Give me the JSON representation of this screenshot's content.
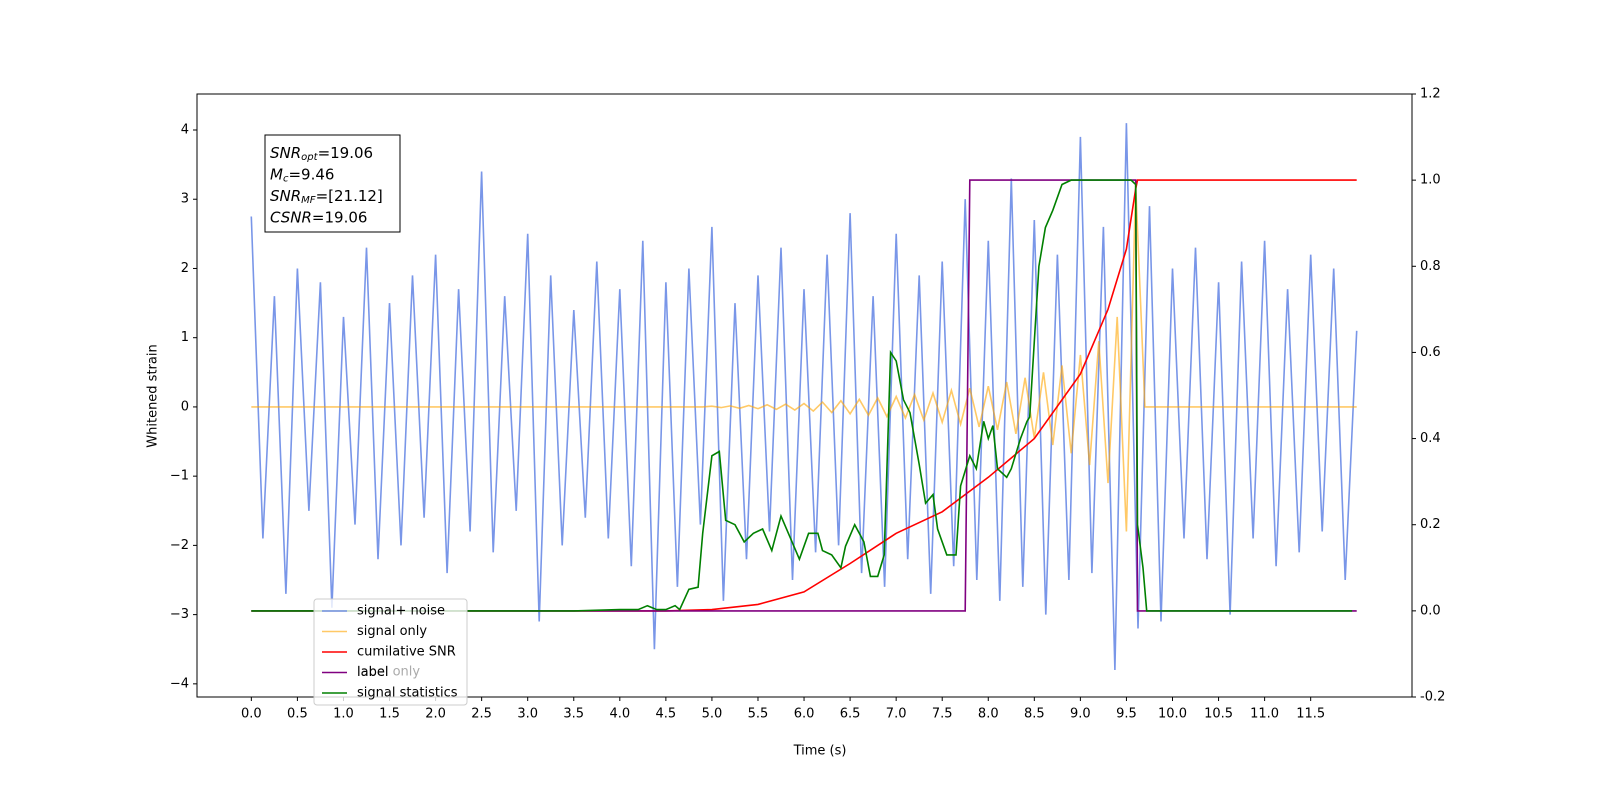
{
  "chart_data": {
    "type": "line",
    "xlabel": "Time (s)",
    "ylabel": "Whitened strain",
    "xlim": [
      -0.59,
      12.6
    ],
    "ylim": [
      -4.19,
      4.52
    ],
    "y2lim": [
      -0.2,
      1.2
    ],
    "xticks": [
      {
        "value": 0,
        "label": "0.0"
      },
      0.5,
      {
        "value": 1,
        "label": "1.0"
      },
      1.5,
      {
        "value": 2,
        "label": "2.0"
      },
      2.5,
      {
        "value": 3,
        "label": "3.0"
      },
      3.5,
      {
        "value": 4,
        "label": "4.0"
      },
      4.5,
      {
        "value": 5,
        "label": "5.0"
      },
      5.5,
      {
        "value": 6,
        "label": "6.0"
      },
      6.5,
      {
        "value": 7,
        "label": "7.0"
      },
      7.5,
      {
        "value": 8,
        "label": "8.0"
      },
      8.5,
      {
        "value": 9,
        "label": "9.0"
      },
      9.5,
      {
        "value": 10,
        "label": "10.0"
      },
      10.5,
      {
        "value": 11,
        "label": "11.0"
      },
      11.5
    ],
    "yticks": [
      {
        "value": -4,
        "label": "−4"
      },
      {
        "value": -3,
        "label": "−3"
      },
      {
        "value": -2,
        "label": "−2"
      },
      {
        "value": -1,
        "label": "−1"
      },
      0,
      1,
      2,
      3,
      4
    ],
    "y2ticks": [
      -0.2,
      {
        "value": 0,
        "label": "0.0"
      },
      0.2,
      0.4,
      0.6,
      0.8,
      {
        "value": 1,
        "label": "1.0"
      },
      1.2
    ],
    "annotation_lines": [
      {
        "name": "SNR",
        "sub": "opt",
        "text": "=19.06"
      },
      {
        "name": "M",
        "sub": "c",
        "text": "=9.46"
      },
      {
        "name": "SNR",
        "sub": "MF",
        "text": "=[21.12]"
      },
      {
        "name": "CSNR",
        "sub": "",
        "text": "=19.06"
      }
    ],
    "legend_loc": "lower left",
    "legend_overlap_text": "label only",
    "series": [
      {
        "name": "signal+ noise",
        "color": "#6f8ee6",
        "opacity": 0.93,
        "axis": "y",
        "x": [
          0,
          0.125,
          0.25,
          0.375,
          0.5,
          0.625,
          0.75,
          0.875,
          1,
          1.125,
          1.25,
          1.375,
          1.5,
          1.625,
          1.75,
          1.875,
          2,
          2.125,
          2.25,
          2.375,
          2.5,
          2.625,
          2.75,
          2.875,
          3,
          3.125,
          3.25,
          3.375,
          3.5,
          3.625,
          3.75,
          3.875,
          4,
          4.125,
          4.25,
          4.375,
          4.5,
          4.625,
          4.75,
          4.875,
          5,
          5.125,
          5.25,
          5.375,
          5.5,
          5.625,
          5.75,
          5.875,
          6,
          6.125,
          6.25,
          6.375,
          6.5,
          6.625,
          6.75,
          6.875,
          7,
          7.125,
          7.25,
          7.375,
          7.5,
          7.625,
          7.75,
          7.875,
          8,
          8.125,
          8.25,
          8.375,
          8.5,
          8.625,
          8.75,
          8.875,
          9,
          9.125,
          9.25,
          9.375,
          9.5,
          9.625,
          9.75,
          9.875,
          10,
          10.125,
          10.25,
          10.375,
          10.5,
          10.625,
          10.75,
          10.875,
          11,
          11.125,
          11.25,
          11.375,
          11.5,
          11.625,
          11.75,
          11.875,
          12
        ],
        "values": [
          2.75,
          -1.9,
          1.6,
          -2.7,
          2.0,
          -1.5,
          1.8,
          -2.9,
          1.3,
          -1.7,
          2.3,
          -2.2,
          1.5,
          -2.0,
          1.9,
          -1.6,
          2.2,
          -2.4,
          1.7,
          -1.8,
          3.4,
          -2.1,
          1.6,
          -1.5,
          2.5,
          -3.1,
          1.9,
          -2.0,
          1.4,
          -1.6,
          2.1,
          -1.9,
          1.7,
          -2.3,
          2.4,
          -3.5,
          1.8,
          -2.6,
          2.0,
          -1.7,
          2.6,
          -2.8,
          1.5,
          -2.2,
          1.9,
          -1.8,
          2.3,
          -2.5,
          1.7,
          -2.1,
          2.2,
          -2.0,
          2.8,
          -2.4,
          1.6,
          -2.6,
          2.5,
          -2.2,
          1.9,
          -2.7,
          2.1,
          -2.3,
          3.0,
          -2.5,
          2.4,
          -2.8,
          3.3,
          -2.6,
          2.7,
          -3.0,
          2.2,
          -2.5,
          3.9,
          -2.4,
          2.6,
          -3.8,
          4.1,
          -3.2,
          2.9,
          -3.1,
          2.0,
          -1.9,
          2.3,
          -2.2,
          1.8,
          -3.0,
          2.1,
          -1.9,
          2.4,
          -2.3,
          1.7,
          -2.1,
          2.2,
          -1.8,
          2.0,
          -2.5,
          1.1
        ]
      },
      {
        "name": "signal only",
        "color": "orange",
        "opacity": 0.6,
        "axis": "y",
        "x": [
          0,
          4.9,
          5.0,
          5.1,
          5.2,
          5.3,
          5.4,
          5.5,
          5.6,
          5.7,
          5.8,
          5.9,
          6.0,
          6.1,
          6.2,
          6.3,
          6.4,
          6.5,
          6.6,
          6.7,
          6.8,
          6.9,
          7.0,
          7.1,
          7.2,
          7.3,
          7.4,
          7.5,
          7.6,
          7.7,
          7.8,
          7.9,
          8.0,
          8.1,
          8.2,
          8.3,
          8.4,
          8.5,
          8.6,
          8.7,
          8.8,
          8.9,
          9.0,
          9.1,
          9.2,
          9.3,
          9.4,
          9.5,
          9.6,
          9.7,
          12
        ],
        "values": [
          0,
          0,
          0.01,
          -0.01,
          0.015,
          -0.02,
          0.02,
          -0.025,
          0.03,
          -0.035,
          0.04,
          -0.045,
          0.05,
          -0.06,
          0.07,
          -0.08,
          0.09,
          -0.1,
          0.11,
          -0.12,
          0.13,
          -0.14,
          0.15,
          -0.16,
          0.18,
          -0.19,
          0.2,
          -0.22,
          0.24,
          -0.25,
          0.27,
          -0.29,
          0.3,
          -0.33,
          0.36,
          -0.39,
          0.42,
          -0.45,
          0.5,
          -0.55,
          0.6,
          -0.67,
          0.75,
          -0.84,
          0.95,
          -1.1,
          1.3,
          -1.8,
          3.2,
          0,
          0
        ]
      },
      {
        "name": "cumilative SNR",
        "color": "red",
        "opacity": 1,
        "axis": "y2",
        "x": [
          0,
          4.5,
          5.0,
          5.5,
          6.0,
          6.5,
          7.0,
          7.5,
          8.0,
          8.5,
          9.0,
          9.3,
          9.5,
          9.6,
          9.62,
          12
        ],
        "values": [
          0,
          0,
          0.003,
          0.015,
          0.044,
          0.11,
          0.18,
          0.23,
          0.31,
          0.4,
          0.55,
          0.7,
          0.84,
          0.98,
          1.0,
          1.0
        ]
      },
      {
        "name": "label",
        "color": "purple",
        "opacity": 1,
        "axis": "y2",
        "x": [
          0,
          7.75,
          7.8,
          9.6,
          9.62,
          12
        ],
        "values": [
          0,
          0,
          1,
          1,
          0,
          0
        ]
      },
      {
        "name": "signal statistics",
        "color": "green",
        "opacity": 1,
        "axis": "y2",
        "x": [
          0,
          3.5,
          4.0,
          4.2,
          4.3,
          4.4,
          4.5,
          4.6,
          4.65,
          4.75,
          4.85,
          4.9,
          5.0,
          5.08,
          5.15,
          5.25,
          5.35,
          5.45,
          5.55,
          5.65,
          5.75,
          5.85,
          5.95,
          6.05,
          6.15,
          6.2,
          6.3,
          6.4,
          6.45,
          6.55,
          6.65,
          6.72,
          6.8,
          6.87,
          6.94,
          7.0,
          7.08,
          7.15,
          7.25,
          7.32,
          7.4,
          7.45,
          7.55,
          7.65,
          7.7,
          7.8,
          7.87,
          7.95,
          8.0,
          8.05,
          8.1,
          8.2,
          8.25,
          8.35,
          8.42,
          8.45,
          8.55,
          8.62,
          8.7,
          8.8,
          8.9,
          9.55,
          9.6,
          9.62,
          9.68,
          9.72,
          11.95
        ],
        "values": [
          0,
          0,
          0.003,
          0.003,
          0.012,
          0.003,
          0.003,
          0.012,
          0.003,
          0.05,
          0.055,
          0.18,
          0.36,
          0.37,
          0.21,
          0.2,
          0.16,
          0.18,
          0.19,
          0.14,
          0.22,
          0.17,
          0.12,
          0.18,
          0.18,
          0.14,
          0.13,
          0.1,
          0.15,
          0.2,
          0.16,
          0.08,
          0.08,
          0.13,
          0.6,
          0.58,
          0.49,
          0.46,
          0.34,
          0.25,
          0.27,
          0.19,
          0.13,
          0.13,
          0.29,
          0.36,
          0.33,
          0.44,
          0.4,
          0.43,
          0.33,
          0.31,
          0.33,
          0.4,
          0.44,
          0.45,
          0.8,
          0.89,
          0.93,
          0.99,
          1.0,
          1.0,
          0.99,
          0.2,
          0.1,
          0.0,
          0.0
        ]
      }
    ]
  }
}
